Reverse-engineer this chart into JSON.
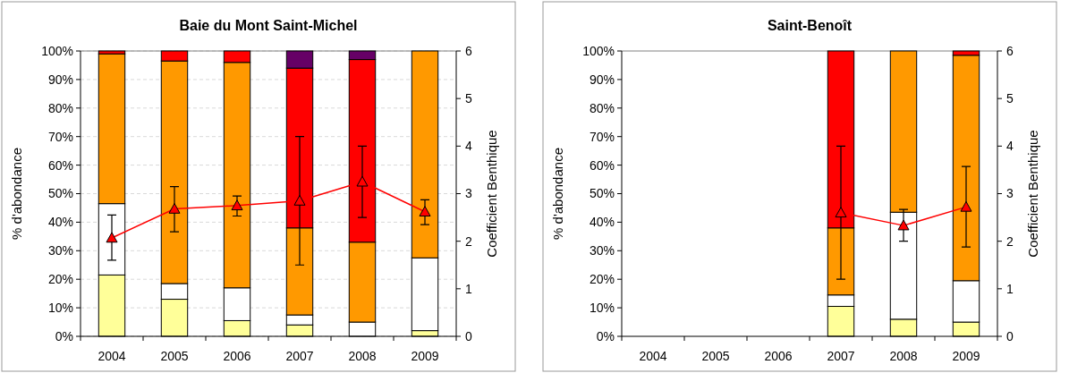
{
  "chart_data": [
    {
      "type": "bar",
      "title": "Baie du Mont Saint-Michel",
      "stacked": true,
      "categories": [
        "2004",
        "2005",
        "2006",
        "2007",
        "2008",
        "2009"
      ],
      "ylabel": "% d'abondance",
      "y2label": "Coefficient Benthique",
      "ylim": [
        0,
        100
      ],
      "yticks": [
        {
          "value": 0,
          "label": "0%"
        },
        {
          "value": 10,
          "label": "10%"
        },
        {
          "value": 20,
          "label": "20%"
        },
        {
          "value": 30,
          "label": "30%"
        },
        {
          "value": 40,
          "label": "40%"
        },
        {
          "value": 50,
          "label": "50%"
        },
        {
          "value": 60,
          "label": "60%"
        },
        {
          "value": 70,
          "label": "70%"
        },
        {
          "value": 80,
          "label": "80%"
        },
        {
          "value": 90,
          "label": "90%"
        },
        {
          "value": 100,
          "label": "100%"
        }
      ],
      "y2lim": [
        0,
        6
      ],
      "y2ticks": [
        0,
        1,
        2,
        3,
        4,
        5,
        6
      ],
      "grid": "y",
      "marker": "triangle",
      "series": [
        {
          "color": "#ffff99",
          "values": [
            21.5,
            13,
            5.5,
            4,
            null,
            2
          ]
        },
        {
          "color": "#ffffff",
          "values": [
            25,
            5.5,
            11.5,
            3.5,
            5,
            25.5
          ]
        },
        {
          "color": "#ff9900",
          "values": [
            52.5,
            78,
            79,
            30.5,
            28,
            72.5
          ]
        },
        {
          "color": "#ff0000",
          "values": [
            1,
            3.5,
            4,
            56,
            64,
            0
          ]
        },
        {
          "color": "#660066",
          "values": [
            0,
            0,
            0,
            6,
            3,
            0
          ]
        },
        {
          "type": "line",
          "axis": "y2",
          "color": "#ff0000",
          "values": [
            2.07,
            2.68,
            2.75,
            2.85,
            3.25,
            2.62
          ],
          "errors": [
            [
              1.6,
              2.55
            ],
            [
              2.2,
              3.15
            ],
            [
              2.53,
              2.95
            ],
            [
              1.5,
              4.2
            ],
            [
              2.5,
              4.0
            ],
            [
              2.35,
              2.87
            ]
          ]
        }
      ]
    },
    {
      "type": "bar",
      "title": "Saint-Benoît",
      "stacked": true,
      "categories": [
        "2004",
        "2005",
        "2006",
        "2007",
        "2008",
        "2009"
      ],
      "ylabel": "% d'abondance",
      "y2label": "Coefficient Benthique",
      "ylim": [
        0,
        100
      ],
      "yticks": [
        {
          "value": 0,
          "label": "0%"
        },
        {
          "value": 10,
          "label": "10%"
        },
        {
          "value": 20,
          "label": "20%"
        },
        {
          "value": 30,
          "label": "30%"
        },
        {
          "value": 40,
          "label": "40%"
        },
        {
          "value": 50,
          "label": "50%"
        },
        {
          "value": 60,
          "label": "60%"
        },
        {
          "value": 70,
          "label": "70%"
        },
        {
          "value": 80,
          "label": "80%"
        },
        {
          "value": 90,
          "label": "90%"
        },
        {
          "value": 100,
          "label": "100%"
        }
      ],
      "y2lim": [
        0,
        6
      ],
      "y2ticks": [
        0,
        1,
        2,
        3,
        4,
        5,
        6
      ],
      "grid": false,
      "marker": "triangle",
      "series": [
        {
          "color": "#ffff99",
          "values": [
            null,
            null,
            null,
            10.5,
            6,
            5
          ]
        },
        {
          "color": "#ffffff",
          "values": [
            null,
            null,
            null,
            4,
            37.5,
            14.5
          ]
        },
        {
          "color": "#ff9900",
          "values": [
            null,
            null,
            null,
            23.5,
            56.5,
            79
          ]
        },
        {
          "color": "#ff0000",
          "values": [
            null,
            null,
            null,
            62,
            0,
            1.5
          ]
        },
        {
          "type": "line",
          "axis": "y2",
          "color": "#ff0000",
          "values": [
            null,
            null,
            null,
            2.6,
            2.33,
            2.72
          ],
          "errors": [
            null,
            null,
            null,
            [
              1.2,
              4.0
            ],
            [
              2.0,
              2.67
            ],
            [
              1.88,
              3.57
            ]
          ]
        }
      ]
    }
  ]
}
